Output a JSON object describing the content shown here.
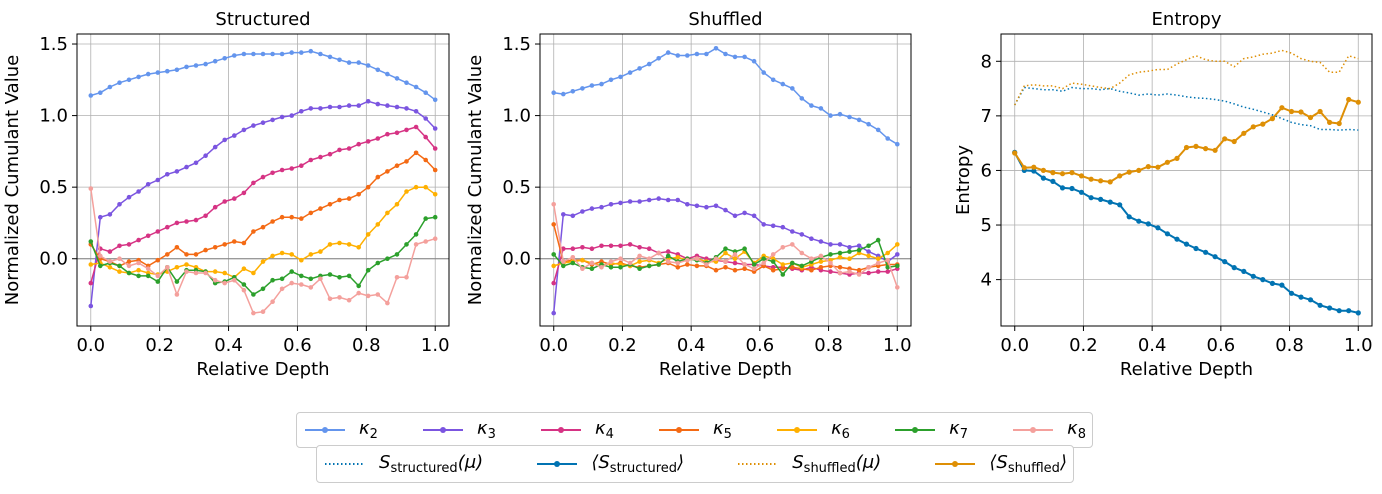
{
  "chart_data": [
    {
      "type": "line",
      "title": "Structured",
      "xlabel": "Relative Depth",
      "ylabel": "Normalized Cumulant Value",
      "xlim": [
        -0.04,
        1.04
      ],
      "ylim": [
        -0.47,
        1.57
      ],
      "xticks": [
        "0.0",
        "0.2",
        "0.4",
        "0.6",
        "0.8",
        "1.0"
      ],
      "yticks": [
        "0.0",
        "0.5",
        "1.0",
        "1.5"
      ],
      "grid": true,
      "zero_line": true,
      "series": [
        {
          "name": "κ2",
          "color": "#6495ED",
          "values": [
            1.14,
            1.16,
            1.2,
            1.23,
            1.25,
            1.27,
            1.29,
            1.3,
            1.31,
            1.32,
            1.34,
            1.35,
            1.36,
            1.38,
            1.4,
            1.42,
            1.43,
            1.43,
            1.43,
            1.43,
            1.43,
            1.44,
            1.44,
            1.45,
            1.43,
            1.41,
            1.39,
            1.37,
            1.37,
            1.35,
            1.32,
            1.29,
            1.26,
            1.23,
            1.2,
            1.16,
            1.11
          ]
        },
        {
          "name": "κ3",
          "color": "#7B55E0",
          "values": [
            -0.33,
            0.29,
            0.31,
            0.38,
            0.43,
            0.47,
            0.52,
            0.55,
            0.59,
            0.61,
            0.64,
            0.67,
            0.72,
            0.78,
            0.83,
            0.86,
            0.9,
            0.93,
            0.95,
            0.97,
            0.99,
            1.0,
            1.03,
            1.05,
            1.05,
            1.06,
            1.06,
            1.07,
            1.07,
            1.1,
            1.08,
            1.07,
            1.06,
            1.05,
            1.03,
            0.98,
            0.91
          ]
        },
        {
          "name": "κ4",
          "color": "#D63384",
          "values": [
            -0.17,
            0.07,
            0.05,
            0.09,
            0.1,
            0.13,
            0.16,
            0.19,
            0.22,
            0.25,
            0.26,
            0.27,
            0.3,
            0.36,
            0.4,
            0.42,
            0.46,
            0.53,
            0.57,
            0.6,
            0.62,
            0.63,
            0.65,
            0.69,
            0.71,
            0.73,
            0.76,
            0.77,
            0.8,
            0.82,
            0.84,
            0.87,
            0.88,
            0.9,
            0.92,
            0.85,
            0.77
          ]
        },
        {
          "name": "κ5",
          "color": "#F46A14",
          "values": [
            0.1,
            0.0,
            -0.02,
            -0.05,
            -0.02,
            -0.01,
            -0.05,
            -0.01,
            0.03,
            0.08,
            0.03,
            0.03,
            0.06,
            0.08,
            0.1,
            0.12,
            0.11,
            0.19,
            0.22,
            0.26,
            0.29,
            0.29,
            0.28,
            0.32,
            0.35,
            0.38,
            0.41,
            0.42,
            0.45,
            0.5,
            0.57,
            0.61,
            0.65,
            0.68,
            0.74,
            0.69,
            0.62
          ]
        },
        {
          "name": "κ6",
          "color": "#FFB000",
          "values": [
            -0.04,
            -0.03,
            -0.06,
            -0.09,
            -0.1,
            -0.08,
            -0.1,
            -0.11,
            -0.09,
            -0.06,
            -0.04,
            -0.06,
            -0.09,
            -0.09,
            -0.1,
            -0.13,
            -0.07,
            -0.1,
            -0.02,
            0.02,
            0.04,
            0.03,
            -0.01,
            0.03,
            0.05,
            0.1,
            0.11,
            0.1,
            0.08,
            0.17,
            0.24,
            0.32,
            0.38,
            0.47,
            0.5,
            0.5,
            0.45
          ]
        },
        {
          "name": "κ7",
          "color": "#2CA02C",
          "values": [
            0.12,
            -0.05,
            -0.03,
            -0.05,
            -0.1,
            -0.12,
            -0.12,
            -0.16,
            -0.06,
            -0.16,
            -0.08,
            -0.08,
            -0.09,
            -0.17,
            -0.16,
            -0.13,
            -0.18,
            -0.25,
            -0.21,
            -0.15,
            -0.14,
            -0.09,
            -0.12,
            -0.14,
            -0.12,
            -0.11,
            -0.13,
            -0.12,
            -0.19,
            -0.08,
            -0.03,
            0.0,
            0.03,
            0.1,
            0.17,
            0.28,
            0.29
          ]
        },
        {
          "name": "κ8",
          "color": "#F4A09C",
          "values": [
            0.49,
            0.02,
            -0.02,
            0.0,
            -0.05,
            -0.03,
            -0.07,
            -0.12,
            -0.06,
            -0.25,
            -0.09,
            -0.1,
            -0.1,
            -0.15,
            -0.17,
            -0.15,
            -0.22,
            -0.38,
            -0.37,
            -0.3,
            -0.21,
            -0.17,
            -0.18,
            -0.2,
            -0.14,
            -0.28,
            -0.27,
            -0.29,
            -0.24,
            -0.26,
            -0.25,
            -0.31,
            -0.13,
            -0.13,
            0.1,
            0.12,
            0.14
          ]
        }
      ]
    },
    {
      "type": "line",
      "title": "Shuffled",
      "xlabel": "Relative Depth",
      "ylabel": "Normalized Cumulant Value",
      "xlim": [
        -0.04,
        1.04
      ],
      "ylim": [
        -0.47,
        1.57
      ],
      "xticks": [
        "0.0",
        "0.2",
        "0.4",
        "0.6",
        "0.8",
        "1.0"
      ],
      "yticks": [
        "0.0",
        "0.5",
        "1.0",
        "1.5"
      ],
      "grid": true,
      "zero_line": true,
      "series": [
        {
          "name": "κ2",
          "color": "#6495ED",
          "values": [
            1.16,
            1.15,
            1.17,
            1.19,
            1.21,
            1.22,
            1.25,
            1.27,
            1.3,
            1.33,
            1.36,
            1.4,
            1.44,
            1.42,
            1.42,
            1.43,
            1.43,
            1.47,
            1.43,
            1.41,
            1.41,
            1.38,
            1.3,
            1.25,
            1.22,
            1.19,
            1.12,
            1.07,
            1.05,
            1.0,
            1.01,
            0.99,
            0.97,
            0.94,
            0.9,
            0.84,
            0.8
          ]
        },
        {
          "name": "κ3",
          "color": "#7B55E0",
          "values": [
            -0.38,
            0.31,
            0.3,
            0.33,
            0.35,
            0.36,
            0.38,
            0.39,
            0.4,
            0.4,
            0.41,
            0.42,
            0.41,
            0.41,
            0.38,
            0.37,
            0.36,
            0.37,
            0.34,
            0.3,
            0.32,
            0.3,
            0.24,
            0.23,
            0.22,
            0.19,
            0.17,
            0.14,
            0.12,
            0.1,
            0.1,
            0.08,
            0.09,
            0.05,
            0.02,
            -0.02,
            0.03
          ]
        },
        {
          "name": "κ4",
          "color": "#D63384",
          "values": [
            -0.17,
            0.07,
            0.07,
            0.08,
            0.07,
            0.09,
            0.09,
            0.09,
            0.1,
            0.08,
            0.07,
            0.04,
            0.05,
            0.03,
            0.0,
            0.02,
            0.0,
            -0.01,
            -0.02,
            -0.03,
            -0.04,
            -0.04,
            -0.05,
            -0.06,
            -0.06,
            -0.07,
            -0.08,
            -0.06,
            -0.08,
            -0.09,
            -0.1,
            -0.11,
            -0.1,
            -0.1,
            -0.09,
            -0.09,
            -0.07
          ]
        },
        {
          "name": "κ5",
          "color": "#F46A14",
          "values": [
            0.24,
            -0.02,
            -0.01,
            -0.01,
            -0.04,
            -0.02,
            -0.04,
            -0.03,
            -0.05,
            -0.06,
            -0.05,
            -0.04,
            -0.03,
            -0.06,
            -0.04,
            -0.05,
            -0.05,
            -0.08,
            -0.06,
            -0.08,
            -0.07,
            -0.09,
            -0.05,
            -0.08,
            -0.07,
            -0.06,
            -0.07,
            -0.08,
            -0.06,
            -0.05,
            -0.06,
            -0.07,
            -0.08,
            -0.06,
            -0.05,
            -0.04,
            -0.04
          ]
        },
        {
          "name": "κ6",
          "color": "#FFB000",
          "values": [
            -0.05,
            -0.03,
            -0.02,
            -0.01,
            -0.03,
            -0.05,
            -0.03,
            -0.04,
            -0.05,
            -0.02,
            -0.01,
            -0.03,
            0.0,
            0.01,
            -0.01,
            0.0,
            -0.02,
            -0.02,
            0.04,
            0.0,
            0.05,
            -0.03,
            0.02,
            0.0,
            -0.04,
            -0.03,
            -0.06,
            -0.04,
            -0.02,
            -0.01,
            0.01,
            0.0,
            0.04,
            0.02,
            0.0,
            0.04,
            0.1
          ]
        },
        {
          "name": "κ7",
          "color": "#2CA02C",
          "values": [
            0.03,
            -0.05,
            -0.03,
            -0.06,
            -0.07,
            -0.04,
            -0.06,
            -0.06,
            -0.04,
            -0.07,
            -0.05,
            -0.04,
            0.02,
            -0.02,
            0.0,
            -0.01,
            -0.03,
            0.01,
            0.07,
            0.05,
            0.07,
            -0.04,
            0.0,
            -0.02,
            -0.11,
            -0.03,
            -0.05,
            -0.02,
            0.01,
            0.03,
            0.04,
            0.05,
            0.06,
            0.09,
            0.13,
            -0.06,
            -0.05
          ]
        },
        {
          "name": "κ8",
          "color": "#F4A09C",
          "values": [
            0.38,
            -0.02,
            0.01,
            -0.07,
            -0.03,
            -0.06,
            -0.02,
            0.0,
            -0.03,
            0.02,
            0.0,
            0.04,
            -0.02,
            -0.03,
            -0.01,
            0.0,
            -0.04,
            0.0,
            -0.02,
            0.03,
            -0.04,
            -0.07,
            -0.03,
            0.03,
            0.08,
            0.1,
            0.04,
            0.0,
            0.02,
            -0.03,
            -0.1,
            -0.09,
            -0.11,
            -0.06,
            -0.03,
            -0.01,
            -0.2
          ]
        }
      ]
    },
    {
      "type": "line",
      "title": "Entropy",
      "xlabel": "Relative Depth",
      "ylabel": "Entropy",
      "xlim": [
        -0.04,
        1.04
      ],
      "ylim": [
        3.15,
        8.5
      ],
      "xticks": [
        "0.0",
        "0.2",
        "0.4",
        "0.6",
        "0.8",
        "1.0"
      ],
      "yticks": [
        "4",
        "5",
        "6",
        "7",
        "8"
      ],
      "grid": true,
      "series": [
        {
          "name": "S_structured(μ)",
          "style": "dotted",
          "color": "#0173B2",
          "values": [
            7.2,
            7.52,
            7.5,
            7.48,
            7.48,
            7.45,
            7.52,
            7.5,
            7.5,
            7.48,
            7.5,
            7.45,
            7.42,
            7.38,
            7.4,
            7.38,
            7.4,
            7.38,
            7.35,
            7.33,
            7.32,
            7.3,
            7.27,
            7.22,
            7.16,
            7.12,
            7.07,
            7.02,
            6.95,
            6.88,
            6.84,
            6.82,
            6.75,
            6.75,
            6.74,
            6.75,
            6.74
          ]
        },
        {
          "name": "⟨S_structured⟩",
          "style": "solid-marker",
          "color": "#0173B2",
          "values": [
            6.33,
            6.0,
            5.99,
            5.86,
            5.8,
            5.68,
            5.67,
            5.6,
            5.5,
            5.47,
            5.42,
            5.37,
            5.15,
            5.07,
            5.02,
            4.95,
            4.84,
            4.74,
            4.65,
            4.57,
            4.5,
            4.42,
            4.33,
            4.22,
            4.15,
            4.06,
            4.0,
            3.93,
            3.9,
            3.75,
            3.68,
            3.63,
            3.53,
            3.48,
            3.43,
            3.43,
            3.39
          ]
        },
        {
          "name": "S_shuffled(μ)",
          "style": "dotted",
          "color": "#DE8F05",
          "values": [
            7.2,
            7.55,
            7.57,
            7.55,
            7.55,
            7.5,
            7.6,
            7.58,
            7.55,
            7.52,
            7.5,
            7.6,
            7.75,
            7.8,
            7.82,
            7.85,
            7.85,
            7.95,
            8.03,
            8.1,
            8.03,
            8.0,
            8.0,
            7.9,
            8.05,
            8.08,
            8.13,
            8.15,
            8.2,
            8.15,
            8.05,
            8.0,
            7.98,
            7.8,
            7.8,
            8.1,
            8.05
          ]
        },
        {
          "name": "⟨S_shuffled⟩",
          "style": "solid-marker",
          "color": "#DE8F05",
          "values": [
            6.32,
            6.05,
            6.06,
            6.0,
            5.96,
            5.94,
            5.96,
            5.9,
            5.84,
            5.81,
            5.79,
            5.9,
            5.97,
            6.0,
            6.07,
            6.06,
            6.15,
            6.22,
            6.42,
            6.44,
            6.4,
            6.37,
            6.58,
            6.53,
            6.68,
            6.8,
            6.85,
            6.95,
            7.15,
            7.08,
            7.07,
            6.97,
            7.08,
            6.88,
            6.86,
            7.3,
            7.25
          ]
        }
      ]
    }
  ],
  "legend_top": [
    {
      "symbol": "κ",
      "sub": "2",
      "color": "#6495ED"
    },
    {
      "symbol": "κ",
      "sub": "3",
      "color": "#7B55E0"
    },
    {
      "symbol": "κ",
      "sub": "4",
      "color": "#D63384"
    },
    {
      "symbol": "κ",
      "sub": "5",
      "color": "#F46A14"
    },
    {
      "symbol": "κ",
      "sub": "6",
      "color": "#FFB000"
    },
    {
      "symbol": "κ",
      "sub": "7",
      "color": "#2CA02C"
    },
    {
      "symbol": "κ",
      "sub": "8",
      "color": "#F4A09C"
    }
  ],
  "legend_bottom": [
    {
      "pre": "S",
      "sub": "structured",
      "post": "(μ)",
      "color": "#0173B2",
      "style": "dotted"
    },
    {
      "pre": "⟨S",
      "sub": "structured",
      "post": "⟩",
      "color": "#0173B2",
      "style": "solid-marker"
    },
    {
      "pre": "S",
      "sub": "shuffled",
      "post": "(μ)",
      "color": "#DE8F05",
      "style": "dotted"
    },
    {
      "pre": "⟨S",
      "sub": "shuffled",
      "post": "⟩",
      "color": "#DE8F05",
      "style": "solid-marker"
    }
  ]
}
